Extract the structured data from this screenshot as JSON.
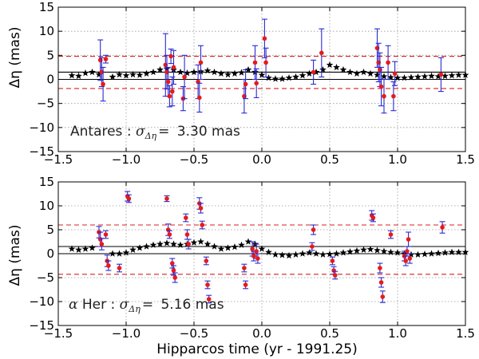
{
  "chart_data": [
    {
      "type": "scatter",
      "name": "Antares",
      "ylabel": "Δη (mas)",
      "xlabel": "",
      "xlim": [
        -1.5,
        1.5
      ],
      "ylim": [
        -15,
        15
      ],
      "xticks": [
        -1.5,
        -1.0,
        -0.5,
        0.0,
        0.5,
        1.0,
        1.5
      ],
      "xtick_labels": [
        "−1.5",
        "−1.0",
        "−0.5",
        "0.0",
        "0.5",
        "1.0",
        "1.5"
      ],
      "yticks": [
        -15,
        -10,
        -5,
        0,
        5,
        10,
        15
      ],
      "ytick_labels": [
        "−15",
        "−10",
        "−5",
        "0",
        "5",
        "10",
        "15"
      ],
      "grid": true,
      "annotation": {
        "prefix": "Antares : ",
        "symbol": "σ",
        "subscript": "Δη",
        "eq": "= ",
        "value": "3.30 mas"
      },
      "hlines_solid": [
        0.0,
        1.5
      ],
      "hlines_dashed": [
        4.8,
        -1.9
      ],
      "measurements": [
        {
          "x": -1.19,
          "y": 4.0,
          "err": 4.2
        },
        {
          "x": -1.18,
          "y": 1.5,
          "err": 3.0
        },
        {
          "x": -1.17,
          "y": -1.0,
          "err": 3.5
        },
        {
          "x": -1.15,
          "y": 4.2,
          "err": 0.8
        },
        {
          "x": -0.71,
          "y": 3.0,
          "err": 6.5
        },
        {
          "x": -0.7,
          "y": 1.5,
          "err": 3.5
        },
        {
          "x": -0.69,
          "y": -0.5,
          "err": 3.0
        },
        {
          "x": -0.68,
          "y": -3.5,
          "err": 2.2
        },
        {
          "x": -0.67,
          "y": 4.8,
          "err": 1.5
        },
        {
          "x": -0.66,
          "y": -2.5,
          "err": 3.0
        },
        {
          "x": -0.65,
          "y": 2.5,
          "err": 3.5
        },
        {
          "x": -0.58,
          "y": -4.0,
          "err": 2.5
        },
        {
          "x": -0.57,
          "y": 0.5,
          "err": 4.5
        },
        {
          "x": -0.47,
          "y": -0.5,
          "err": 3.5
        },
        {
          "x": -0.46,
          "y": -3.8,
          "err": 3.0
        },
        {
          "x": -0.45,
          "y": 3.5,
          "err": 3.5
        },
        {
          "x": -0.13,
          "y": -3.5,
          "err": 3.5
        },
        {
          "x": -0.12,
          "y": -1.0,
          "err": 3.0
        },
        {
          "x": -0.05,
          "y": 3.5,
          "err": 3.5
        },
        {
          "x": -0.04,
          "y": -0.8,
          "err": 3.0
        },
        {
          "x": 0.02,
          "y": 8.5,
          "err": 4.0
        },
        {
          "x": 0.03,
          "y": 3.5,
          "err": 3.0
        },
        {
          "x": 0.38,
          "y": 1.5,
          "err": 2.5
        },
        {
          "x": 0.44,
          "y": 5.5,
          "err": 5.0
        },
        {
          "x": 0.85,
          "y": 6.5,
          "err": 4.0
        },
        {
          "x": 0.86,
          "y": 3.5,
          "err": 4.0
        },
        {
          "x": 0.87,
          "y": 2.0,
          "err": 3.5
        },
        {
          "x": 0.88,
          "y": -1.5,
          "err": 4.0
        },
        {
          "x": 0.9,
          "y": -3.5,
          "err": 3.5
        },
        {
          "x": 0.93,
          "y": 3.5,
          "err": 3.5
        },
        {
          "x": 0.97,
          "y": -3.5,
          "err": 3.0
        },
        {
          "x": 0.98,
          "y": 1.2,
          "err": 2.5
        },
        {
          "x": 1.32,
          "y": 1.0,
          "err": 3.5
        }
      ],
      "model": [
        {
          "x": -1.4,
          "y": 0.8
        },
        {
          "x": -1.35,
          "y": 0.7
        },
        {
          "x": -1.3,
          "y": 1.3
        },
        {
          "x": -1.25,
          "y": 1.5
        },
        {
          "x": -1.2,
          "y": 1.0
        },
        {
          "x": -1.1,
          "y": 0.5
        },
        {
          "x": -1.05,
          "y": 1.0
        },
        {
          "x": -1.0,
          "y": 0.8
        },
        {
          "x": -0.95,
          "y": 1.0
        },
        {
          "x": -0.9,
          "y": 0.9
        },
        {
          "x": -0.85,
          "y": 1.2
        },
        {
          "x": -0.8,
          "y": 1.5
        },
        {
          "x": -0.75,
          "y": 2.0
        },
        {
          "x": -0.7,
          "y": 2.2
        },
        {
          "x": -0.65,
          "y": 2.0
        },
        {
          "x": -0.6,
          "y": 1.5
        },
        {
          "x": -0.55,
          "y": 1.3
        },
        {
          "x": -0.5,
          "y": 1.5
        },
        {
          "x": -0.45,
          "y": 1.6
        },
        {
          "x": -0.4,
          "y": 1.8
        },
        {
          "x": -0.35,
          "y": 1.5
        },
        {
          "x": -0.3,
          "y": 1.2
        },
        {
          "x": -0.25,
          "y": 1.0
        },
        {
          "x": -0.2,
          "y": 1.2
        },
        {
          "x": -0.15,
          "y": 1.4
        },
        {
          "x": -0.1,
          "y": 2.0
        },
        {
          "x": -0.05,
          "y": 1.5
        },
        {
          "x": 0.0,
          "y": 0.9
        },
        {
          "x": 0.05,
          "y": 0.3
        },
        {
          "x": 0.1,
          "y": 0.1
        },
        {
          "x": 0.15,
          "y": 0.1
        },
        {
          "x": 0.2,
          "y": 0.3
        },
        {
          "x": 0.25,
          "y": 0.5
        },
        {
          "x": 0.3,
          "y": 0.8
        },
        {
          "x": 0.35,
          "y": 1.2
        },
        {
          "x": 0.4,
          "y": 1.5
        },
        {
          "x": 0.45,
          "y": 2.0
        },
        {
          "x": 0.5,
          "y": 3.0
        },
        {
          "x": 0.55,
          "y": 2.5
        },
        {
          "x": 0.6,
          "y": 2.0
        },
        {
          "x": 0.65,
          "y": 1.5
        },
        {
          "x": 0.7,
          "y": 1.2
        },
        {
          "x": 0.75,
          "y": 1.5
        },
        {
          "x": 0.8,
          "y": 1.2
        },
        {
          "x": 0.85,
          "y": 0.9
        },
        {
          "x": 0.9,
          "y": 0.6
        },
        {
          "x": 0.95,
          "y": 0.4
        },
        {
          "x": 1.0,
          "y": 0.3
        },
        {
          "x": 1.05,
          "y": 0.3
        },
        {
          "x": 1.1,
          "y": 0.4
        },
        {
          "x": 1.15,
          "y": 0.5
        },
        {
          "x": 1.2,
          "y": 0.6
        },
        {
          "x": 1.25,
          "y": 0.7
        },
        {
          "x": 1.3,
          "y": 0.6
        },
        {
          "x": 1.35,
          "y": 0.7
        },
        {
          "x": 1.4,
          "y": 0.8
        },
        {
          "x": 1.45,
          "y": 0.9
        },
        {
          "x": 1.5,
          "y": 0.9
        }
      ]
    },
    {
      "type": "scatter",
      "name": "alpha Her",
      "ylabel": "Δη (mas)",
      "xlabel": "Hipparcos time (yr - 1991.25)",
      "xlim": [
        -1.5,
        1.5
      ],
      "ylim": [
        -15,
        15
      ],
      "xticks": [
        -1.5,
        -1.0,
        -0.5,
        0.0,
        0.5,
        1.0,
        1.5
      ],
      "xtick_labels": [
        "−1.5",
        "−1.0",
        "−0.5",
        "0.0",
        "0.5",
        "1.0",
        "1.5"
      ],
      "yticks": [
        -15,
        -10,
        -5,
        0,
        5,
        10,
        15
      ],
      "ytick_labels": [
        "−15",
        "−10",
        "−5",
        "0",
        "5",
        "10",
        "15"
      ],
      "grid": true,
      "annotation": {
        "prefix": "α",
        "name": " Her : ",
        "symbol": "σ",
        "subscript": "Δη",
        "eq": "= ",
        "value": "5.16 mas"
      },
      "hlines_solid": [
        0.0,
        1.5
      ],
      "hlines_dashed": [
        6.0,
        -4.3
      ],
      "measurements": [
        {
          "x": -1.2,
          "y": 4.5,
          "err": 1.2
        },
        {
          "x": -1.19,
          "y": 3.0,
          "err": 1.5
        },
        {
          "x": -1.18,
          "y": 2.0,
          "err": 1.2
        },
        {
          "x": -1.15,
          "y": 4.0,
          "err": 0.8
        },
        {
          "x": -1.14,
          "y": -1.5,
          "err": 1.2
        },
        {
          "x": -1.13,
          "y": -2.5,
          "err": 1.0
        },
        {
          "x": -1.05,
          "y": -3.0,
          "err": 0.8
        },
        {
          "x": -0.99,
          "y": 12.0,
          "err": 1.0
        },
        {
          "x": -0.98,
          "y": 11.5,
          "err": 0.8
        },
        {
          "x": -0.7,
          "y": 11.5,
          "err": 0.6
        },
        {
          "x": -0.69,
          "y": 5.0,
          "err": 1.2
        },
        {
          "x": -0.68,
          "y": 4.0,
          "err": 0.8
        },
        {
          "x": -0.66,
          "y": -2.0,
          "err": 1.0
        },
        {
          "x": -0.65,
          "y": -3.5,
          "err": 1.0
        },
        {
          "x": -0.64,
          "y": -5.0,
          "err": 1.0
        },
        {
          "x": -0.56,
          "y": 7.5,
          "err": 0.8
        },
        {
          "x": -0.55,
          "y": 4.0,
          "err": 1.0
        },
        {
          "x": -0.54,
          "y": 2.0,
          "err": 1.0
        },
        {
          "x": -0.46,
          "y": 10.5,
          "err": 1.2
        },
        {
          "x": -0.45,
          "y": 9.5,
          "err": 1.0
        },
        {
          "x": -0.44,
          "y": 6.0,
          "err": 0.8
        },
        {
          "x": -0.41,
          "y": -1.5,
          "err": 0.8
        },
        {
          "x": -0.4,
          "y": -6.5,
          "err": 0.8
        },
        {
          "x": -0.39,
          "y": -9.5,
          "err": 0.8
        },
        {
          "x": -0.13,
          "y": -3.0,
          "err": 0.8
        },
        {
          "x": -0.12,
          "y": -6.5,
          "err": 0.8
        },
        {
          "x": -0.07,
          "y": 1.0,
          "err": 1.5
        },
        {
          "x": -0.06,
          "y": -0.5,
          "err": 1.0
        },
        {
          "x": -0.04,
          "y": 0.5,
          "err": 1.5
        },
        {
          "x": -0.03,
          "y": -1.0,
          "err": 1.0
        },
        {
          "x": 0.38,
          "y": 5.0,
          "err": 1.0
        },
        {
          "x": 0.37,
          "y": 1.5,
          "err": 0.8
        },
        {
          "x": 0.52,
          "y": -1.5,
          "err": 0.8
        },
        {
          "x": 0.53,
          "y": -3.5,
          "err": 0.8
        },
        {
          "x": 0.54,
          "y": -4.5,
          "err": 0.8
        },
        {
          "x": 0.81,
          "y": 8.0,
          "err": 1.0
        },
        {
          "x": 0.82,
          "y": 7.5,
          "err": 0.8
        },
        {
          "x": 0.87,
          "y": -3.0,
          "err": 1.0
        },
        {
          "x": 0.88,
          "y": -6.0,
          "err": 1.0
        },
        {
          "x": 0.89,
          "y": -9.0,
          "err": 1.2
        },
        {
          "x": 0.95,
          "y": 4.0,
          "err": 0.8
        },
        {
          "x": 1.05,
          "y": -0.5,
          "err": 1.0
        },
        {
          "x": 1.06,
          "y": -1.5,
          "err": 1.0
        },
        {
          "x": 1.07,
          "y": 0.5,
          "err": 1.0
        },
        {
          "x": 1.08,
          "y": 3.0,
          "err": 1.5
        },
        {
          "x": 1.09,
          "y": -1.0,
          "err": 1.0
        },
        {
          "x": 1.33,
          "y": 5.5,
          "err": 1.2
        }
      ],
      "model": [
        {
          "x": -1.4,
          "y": 1.0
        },
        {
          "x": -1.35,
          "y": 0.8
        },
        {
          "x": -1.3,
          "y": 1.0
        },
        {
          "x": -1.25,
          "y": 1.2
        },
        {
          "x": -1.1,
          "y": 0.0
        },
        {
          "x": -1.05,
          "y": 0.0
        },
        {
          "x": -1.0,
          "y": 0.2
        },
        {
          "x": -0.95,
          "y": 0.8
        },
        {
          "x": -0.9,
          "y": 1.2
        },
        {
          "x": -0.85,
          "y": 1.5
        },
        {
          "x": -0.8,
          "y": 1.8
        },
        {
          "x": -0.75,
          "y": 2.0
        },
        {
          "x": -0.7,
          "y": 2.2
        },
        {
          "x": -0.65,
          "y": 2.0
        },
        {
          "x": -0.6,
          "y": 1.8
        },
        {
          "x": -0.55,
          "y": 2.0
        },
        {
          "x": -0.5,
          "y": 2.3
        },
        {
          "x": -0.45,
          "y": 2.5
        },
        {
          "x": -0.4,
          "y": 2.0
        },
        {
          "x": -0.35,
          "y": 1.5
        },
        {
          "x": -0.3,
          "y": 1.0
        },
        {
          "x": -0.25,
          "y": 1.2
        },
        {
          "x": -0.2,
          "y": 1.4
        },
        {
          "x": -0.15,
          "y": 1.8
        },
        {
          "x": -0.1,
          "y": 2.5
        },
        {
          "x": -0.05,
          "y": 2.0
        },
        {
          "x": 0.0,
          "y": 1.0
        },
        {
          "x": 0.05,
          "y": 0.3
        },
        {
          "x": 0.1,
          "y": -0.2
        },
        {
          "x": 0.15,
          "y": -0.3
        },
        {
          "x": 0.2,
          "y": -0.4
        },
        {
          "x": 0.25,
          "y": -0.2
        },
        {
          "x": 0.3,
          "y": 0.0
        },
        {
          "x": 0.35,
          "y": 0.2
        },
        {
          "x": 0.4,
          "y": 0.0
        },
        {
          "x": 0.45,
          "y": -0.2
        },
        {
          "x": 0.5,
          "y": -0.1
        },
        {
          "x": 0.55,
          "y": 0.0
        },
        {
          "x": 0.6,
          "y": 0.2
        },
        {
          "x": 0.65,
          "y": 0.4
        },
        {
          "x": 0.7,
          "y": 0.6
        },
        {
          "x": 0.75,
          "y": 0.8
        },
        {
          "x": 0.8,
          "y": 0.9
        },
        {
          "x": 0.85,
          "y": 0.7
        },
        {
          "x": 0.9,
          "y": 0.5
        },
        {
          "x": 0.95,
          "y": 0.3
        },
        {
          "x": 1.0,
          "y": 0.2
        },
        {
          "x": 1.05,
          "y": 0.0
        },
        {
          "x": 1.1,
          "y": -0.2
        },
        {
          "x": 1.15,
          "y": -0.2
        },
        {
          "x": 1.2,
          "y": -0.1
        },
        {
          "x": 1.25,
          "y": 0.0
        },
        {
          "x": 1.3,
          "y": 0.1
        },
        {
          "x": 1.35,
          "y": 0.2
        },
        {
          "x": 1.4,
          "y": 0.3
        },
        {
          "x": 1.45,
          "y": 0.3
        },
        {
          "x": 1.5,
          "y": 0.3
        }
      ]
    }
  ]
}
